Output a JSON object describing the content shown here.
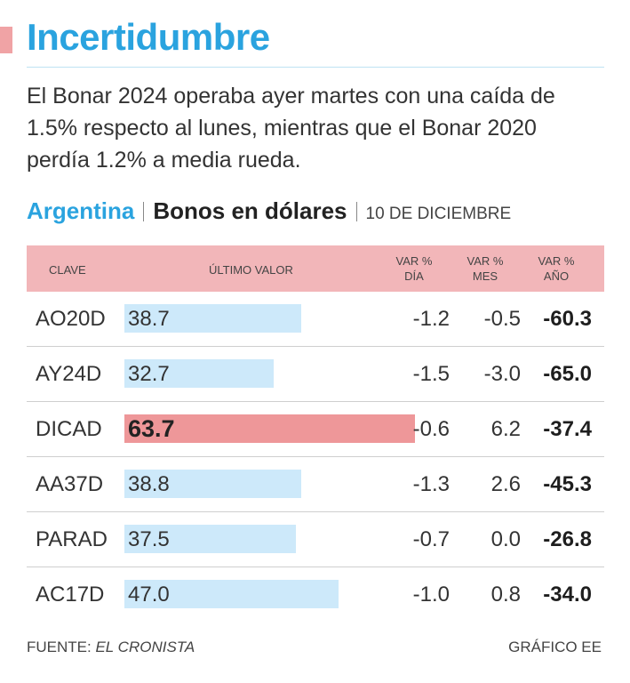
{
  "header": {
    "title": "Incertidumbre",
    "lead": "El Bonar 2024 operaba ayer martes con una caída de 1.5% respecto al lunes, mientras que el Bonar 2020 perdía 1.2% a media rueda."
  },
  "subhead": {
    "country": "Argentina",
    "topic": "Bonos en dólares",
    "date": "10 DE DICIEMBRE"
  },
  "columns": {
    "clave": "CLAVE",
    "ultimo": "ÚLTIMO VALOR",
    "dia": [
      "VAR %",
      "DÍA"
    ],
    "mes": [
      "VAR %",
      "MES"
    ],
    "anio": [
      "VAR %",
      "AÑO"
    ]
  },
  "colors": {
    "accent": "#2aa3df",
    "header_bg": "#f2b6b9",
    "bar": "#cde9fa",
    "bar_highlight": "#ee9799"
  },
  "chart_data": {
    "type": "table",
    "title": "Bonos en dólares",
    "bar_axis_max": 75,
    "highlight": "DICAD",
    "rows": [
      {
        "clave": "AO20D",
        "ultimo": "38.7",
        "value": 38.7,
        "dia": "-1.2",
        "mes": "-0.5",
        "anio": "-60.3"
      },
      {
        "clave": "AY24D",
        "ultimo": "32.7",
        "value": 32.7,
        "dia": "-1.5",
        "mes": "-3.0",
        "anio": "-65.0"
      },
      {
        "clave": "DICAD",
        "ultimo": "63.7",
        "value": 63.7,
        "dia": "-0.6",
        "mes": "6.2",
        "anio": "-37.4"
      },
      {
        "clave": "AA37D",
        "ultimo": "38.8",
        "value": 38.8,
        "dia": "-1.3",
        "mes": "2.6",
        "anio": "-45.3"
      },
      {
        "clave": "PARAD",
        "ultimo": "37.5",
        "value": 37.5,
        "dia": "-0.7",
        "mes": "0.0",
        "anio": "-26.8"
      },
      {
        "clave": "AC17D",
        "ultimo": "47.0",
        "value": 47.0,
        "dia": "-1.0",
        "mes": "0.8",
        "anio": "-34.0"
      }
    ]
  },
  "footer": {
    "source_label": "FUENTE:",
    "source_name": "EL CRONISTA",
    "credit": "GRÁFICO EE"
  }
}
